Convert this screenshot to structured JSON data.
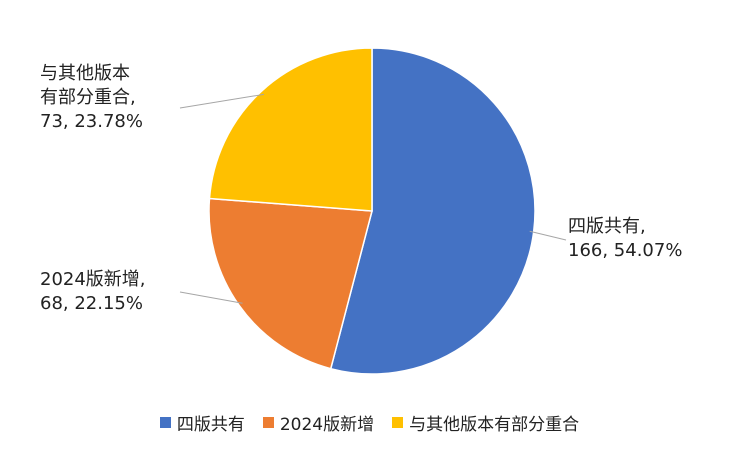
{
  "chart_data": {
    "type": "pie",
    "title": "",
    "slices": [
      {
        "label": "四版共有",
        "value": 166,
        "percent": "54.07%",
        "color": "#4472C4"
      },
      {
        "label": "2024版新增",
        "value": 68,
        "percent": "22.15%",
        "color": "#ED7D31"
      },
      {
        "label": "与其他版本有部分重合",
        "value": 73,
        "percent": "23.78%",
        "color": "#FFC000"
      }
    ],
    "data_labels": [
      {
        "line1": "四版共有,",
        "line2": "166, 54.07%"
      },
      {
        "line1": "2024版新增,",
        "line2": "68, 22.15%"
      },
      {
        "line1": "与其他版本",
        "line2": "有部分重合,",
        "line3": "73, 23.78%"
      }
    ],
    "legend": {
      "position": "bottom",
      "entries": [
        "四版共有",
        "2024版新增",
        "与其他版本有部分重合"
      ]
    }
  }
}
